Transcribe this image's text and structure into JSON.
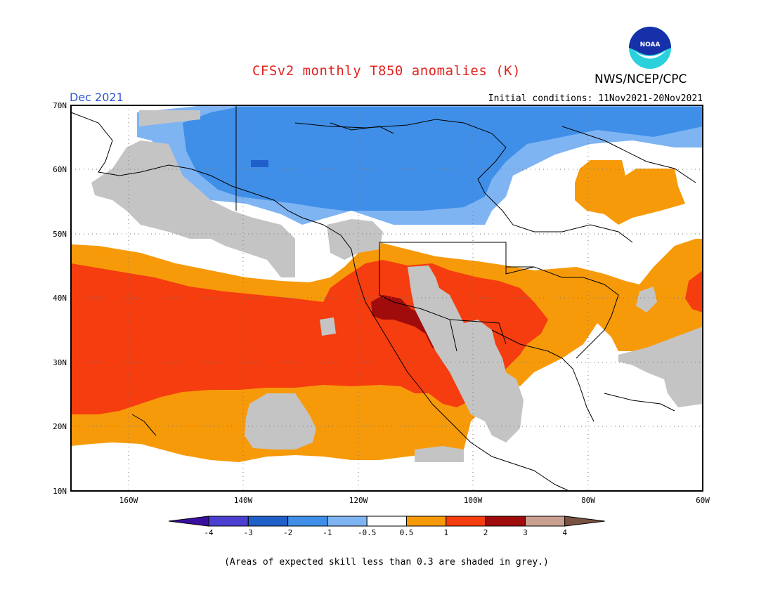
{
  "header": {
    "title": "CFSv2 monthly T850 anomalies (K)",
    "agency": "NWS/NCEP/CPC",
    "month": "Dec 2021",
    "initial_conditions": "Initial conditions: 11Nov2021-20Nov2021",
    "logo_text": "NOAA"
  },
  "map": {
    "lat_labels": [
      "70N",
      "60N",
      "50N",
      "40N",
      "30N",
      "20N",
      "10N"
    ],
    "lon_labels": [
      "160W",
      "140W",
      "120W",
      "100W",
      "80W",
      "60W"
    ],
    "extent": {
      "lon_min": -170,
      "lon_max": -60,
      "lat_min": 10,
      "lat_max": 70
    },
    "grid": "dotted",
    "regions": [
      {
        "name": "arctic-cold-band",
        "category": "-1..-0.5",
        "color": "#7fb4f3"
      },
      {
        "name": "canada-cold-core",
        "category": "-2..-1",
        "color": "#3f8fe8"
      },
      {
        "name": "canada-cold-spot",
        "category": "-3..-2",
        "color": "#1f5fc9"
      },
      {
        "name": "subtropical-warm-band",
        "category": "0.5..1",
        "color": "#f79a0a"
      },
      {
        "name": "pacific-warm-core",
        "category": "1..2",
        "color": "#f53d0f"
      },
      {
        "name": "southwest-hot-spot",
        "category": "2..3",
        "color": "#a00c0c"
      },
      {
        "name": "atlantic-warm",
        "category": "0.5..1",
        "color": "#f79a0a"
      },
      {
        "name": "low-skill",
        "category": "grey",
        "color": "#c4c4c4"
      }
    ]
  },
  "colorbar": {
    "labels": [
      "-4",
      "-3",
      "-2",
      "-1",
      "-0.5",
      "0.5",
      "1",
      "2",
      "3",
      "4"
    ],
    "colors": [
      "#3a0fa0",
      "#4a3fcf",
      "#1f5fc9",
      "#3f8fe8",
      "#7fb4f3",
      "#ffffff",
      "#f79a0a",
      "#f53d0f",
      "#a00c0c",
      "#c9a08f",
      "#7a5241"
    ]
  },
  "footnote": "(Areas of expected skill less than 0.3 are shaded in grey.)"
}
